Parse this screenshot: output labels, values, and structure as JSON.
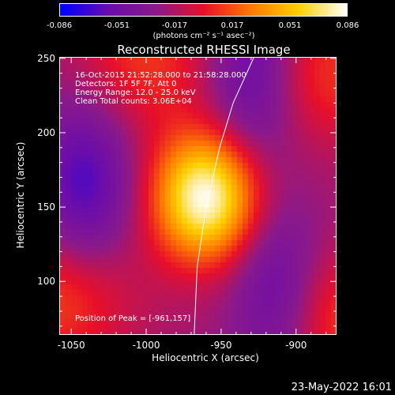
{
  "colorbar": {
    "tick_labels": [
      "-0.086",
      "-0.051",
      "-0.017",
      "0.017",
      "0.051",
      "0.086"
    ],
    "units": "(photons cm⁻² s⁻¹ asec⁻²)",
    "range": [
      -0.086,
      0.086
    ],
    "colormap": [
      "#0000ff",
      "#6a0dad",
      "#8b1a8b",
      "#e8102a",
      "#ff7a00",
      "#ffd000",
      "#ffffff"
    ]
  },
  "title": "Reconstructed RHESSI Image",
  "info": {
    "time_range": "16-Oct-2015 21:52:28.000 to 21:58:28.000",
    "detectors": "Detectors: 1F 5F 7F, Att 0",
    "energy": "Energy Range: 12.0 - 25.0 keV",
    "clean": "Clean    Total counts: 3.06E+04",
    "peak": "Position of Peak = [-961,157]"
  },
  "footer_date": "23-May-2022 16:01",
  "chart_data": {
    "type": "heatmap",
    "title": "Reconstructed RHESSI Image",
    "xlabel": "Heliocentric X (arcsec)",
    "ylabel": "Heliocentric Y (arcsec)",
    "xlim": [
      -1058,
      -873
    ],
    "ylim": [
      64,
      251
    ],
    "x_ticks": [
      -1050,
      -1000,
      -950,
      -900
    ],
    "y_ticks": [
      100,
      150,
      200,
      250
    ],
    "x_tick_labels": [
      "-1050",
      "-1000",
      "-950",
      "-900"
    ],
    "y_tick_labels": [
      "100",
      "150",
      "200",
      "250"
    ],
    "value_range": [
      -0.086,
      0.086
    ],
    "peak_position": [
      -961,
      157
    ],
    "features": [
      {
        "kind": "source",
        "x": -961,
        "y": 157,
        "value": 0.086
      },
      {
        "kind": "positive-lobe",
        "x": -1058,
        "y": 90,
        "value": 0.04
      },
      {
        "kind": "positive-lobe",
        "x": -875,
        "y": 75,
        "value": 0.04
      },
      {
        "kind": "positive-lobe",
        "x": -1000,
        "y": 250,
        "value": 0.035
      },
      {
        "kind": "positive-lobe",
        "x": -880,
        "y": 240,
        "value": 0.035
      },
      {
        "kind": "negative-lobe",
        "x": -1042,
        "y": 165,
        "value": -0.05
      },
      {
        "kind": "negative-lobe",
        "x": -913,
        "y": 91,
        "value": -0.045
      },
      {
        "kind": "negative-lobe",
        "x": -930,
        "y": 238,
        "value": -0.045
      }
    ],
    "limb": [
      [
        -928,
        251
      ],
      [
        -942,
        220
      ],
      [
        -951,
        190
      ],
      [
        -960,
        150
      ],
      [
        -966,
        110
      ],
      [
        -968,
        64
      ]
    ],
    "grid": false
  }
}
